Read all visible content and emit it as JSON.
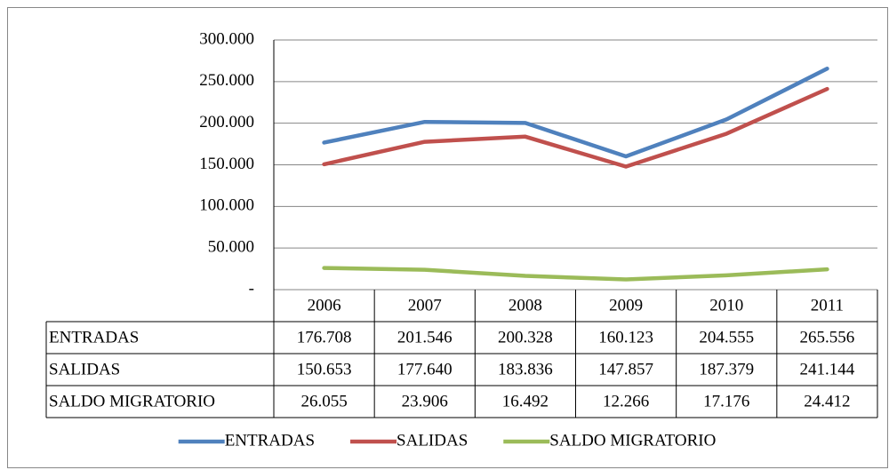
{
  "chart_data": {
    "type": "line",
    "categories": [
      "2006",
      "2007",
      "2008",
      "2009",
      "2010",
      "2011"
    ],
    "series": [
      {
        "name": "ENTRADAS",
        "color": "#4f81bd",
        "values": [
          176708,
          201546,
          200328,
          160123,
          204555,
          265556
        ],
        "value_labels": [
          "176.708",
          "201.546",
          "200.328",
          "160.123",
          "204.555",
          "265.556"
        ]
      },
      {
        "name": "SALIDAS",
        "color": "#c0504d",
        "values": [
          150653,
          177640,
          183836,
          147857,
          187379,
          241144
        ],
        "value_labels": [
          "150.653",
          "177.640",
          "183.836",
          "147.857",
          "187.379",
          "241.144"
        ]
      },
      {
        "name": "SALDO MIGRATORIO",
        "color": "#9bbb59",
        "values": [
          26055,
          23906,
          16492,
          12266,
          17176,
          24412
        ],
        "value_labels": [
          "26.055",
          "23.906",
          "16.492",
          "12.266",
          "17.176",
          "24.412"
        ]
      }
    ],
    "ylim": [
      0,
      300000
    ],
    "yticks": [
      {
        "value": 0,
        "label": "-"
      },
      {
        "value": 50000,
        "label": "50.000"
      },
      {
        "value": 100000,
        "label": "100.000"
      },
      {
        "value": 150000,
        "label": "150.000"
      },
      {
        "value": 200000,
        "label": "200.000"
      },
      {
        "value": 250000,
        "label": "250.000"
      },
      {
        "value": 300000,
        "label": "300.000"
      }
    ],
    "grid": true,
    "legend": "bottom"
  }
}
